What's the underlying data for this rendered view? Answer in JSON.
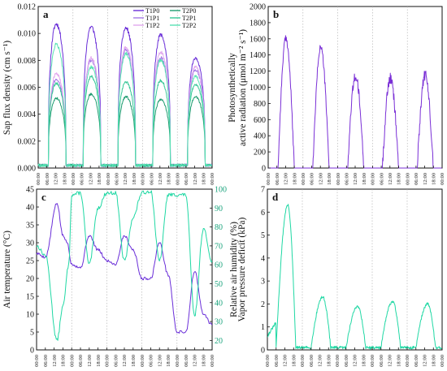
{
  "colors": {
    "T1P0": "#6a2ed8",
    "T1P1": "#a67ae6",
    "T1P2": "#e2a8ee",
    "T2P0": "#1f9c70",
    "T2P1": "#35c796",
    "T2P2": "#58e2b4",
    "par": "#7a2fd6",
    "temp": "#6a2ed8",
    "rh": "#20d8a4",
    "vpd": "#20d8a4"
  },
  "chart_data": [
    {
      "panel": "a",
      "type": "line",
      "ylabel": "Sap flux density (cm s⁻¹)",
      "ylim": [
        0,
        0.012
      ],
      "yticks": [
        "0.000",
        "0.002",
        "0.004",
        "0.006",
        "0.008",
        "0.010",
        "0.012"
      ],
      "xticks": [
        "00:00",
        "06:00",
        "12:00",
        "18:00",
        "00:00",
        "06:00",
        "12:00",
        "18:00",
        "00:00",
        "06:00",
        "12:00",
        "18:00",
        "00:00",
        "06:00",
        "12:00",
        "18:00",
        "00:00",
        "06:00",
        "12:00",
        "18:00",
        "00:00"
      ],
      "legend": [
        "T1P0",
        "T2P0",
        "T1P1",
        "T2P1",
        "T1P2",
        "T2P2"
      ],
      "series": [
        {
          "name": "T1P0",
          "daily_peaks": [
            0.0107,
            0.0105,
            0.0104,
            0.0099,
            0.0082
          ]
        },
        {
          "name": "T1P1",
          "daily_peaks": [
            0.0066,
            0.008,
            0.0088,
            0.0082,
            0.0073
          ]
        },
        {
          "name": "T1P2",
          "daily_peaks": [
            0.007,
            0.0082,
            0.009,
            0.0086,
            0.0075
          ]
        },
        {
          "name": "T2P0",
          "daily_peaks": [
            0.0052,
            0.0055,
            0.0053,
            0.0051,
            0.0053
          ]
        },
        {
          "name": "T2P1",
          "daily_peaks": [
            0.0063,
            0.0068,
            0.0064,
            0.0065,
            0.0062
          ]
        },
        {
          "name": "T2P2",
          "daily_peaks": [
            0.0092,
            0.0075,
            0.0085,
            0.008,
            0.0068
          ]
        }
      ]
    },
    {
      "panel": "b",
      "type": "line",
      "ylabel": "Photosynthetically active radiation (μmol m⁻² s⁻¹)",
      "ylabel_lines": [
        "Photosynthetically",
        "active radiation (μmol m⁻² s⁻¹)"
      ],
      "ylim": [
        0,
        2000
      ],
      "yticks": [
        "0",
        "200",
        "400",
        "600",
        "800",
        "1000",
        "1200",
        "1400",
        "1600",
        "1800",
        "2000"
      ],
      "xticks": [
        "00:00",
        "06:00",
        "12:00",
        "18:00",
        "00:00",
        "06:00",
        "12:00",
        "18:00",
        "00:00",
        "06:00",
        "12:00",
        "18:00",
        "00:00",
        "06:00",
        "12:00",
        "18:00",
        "00:00",
        "06:00",
        "12:00",
        "18:00",
        "00:00"
      ],
      "series": [
        {
          "name": "PAR",
          "daily_peaks": [
            1600,
            1500,
            1130,
            1110,
            1150
          ]
        }
      ]
    },
    {
      "panel": "c",
      "type": "line",
      "ylabel": "Air temperature (°C)",
      "ylabel_right": "Relative air humidity (%)",
      "ylim": [
        0,
        45
      ],
      "ylim_right": [
        15,
        100
      ],
      "yticks": [
        "0",
        "5",
        "10",
        "15",
        "20",
        "25",
        "30",
        "35",
        "40",
        "45"
      ],
      "yticks_right": [
        "20",
        "30",
        "40",
        "50",
        "60",
        "70",
        "80",
        "90",
        "100"
      ],
      "xticks": [
        "00:00",
        "06:00",
        "12:00",
        "18:00",
        "00:00",
        "06:00",
        "12:00",
        "18:00",
        "00:00",
        "06:00",
        "12:00",
        "18:00",
        "00:00",
        "06:00",
        "12:00",
        "18:00",
        "00:00",
        "06:00",
        "12:00",
        "18:00",
        "00:00"
      ],
      "series": [
        {
          "name": "Air temperature",
          "points": [
            [
              0,
              27
            ],
            [
              6,
              26
            ],
            [
              14,
              41
            ],
            [
              18,
              32
            ],
            [
              21,
              30
            ],
            [
              24,
              24
            ],
            [
              30,
              23
            ],
            [
              36,
              32
            ],
            [
              42,
              28
            ],
            [
              48,
              25
            ],
            [
              54,
              24
            ],
            [
              60,
              32
            ],
            [
              66,
              28
            ],
            [
              72,
              20
            ],
            [
              78,
              20
            ],
            [
              84,
              30
            ],
            [
              90,
              21
            ],
            [
              96,
              5
            ],
            [
              102,
              5
            ],
            [
              108,
              22
            ],
            [
              114,
              10
            ],
            [
              120,
              7
            ]
          ]
        },
        {
          "name": "Relative air humidity",
          "points": [
            [
              0,
              70
            ],
            [
              6,
              65
            ],
            [
              14,
              20
            ],
            [
              18,
              38
            ],
            [
              22,
              60
            ],
            [
              24,
              97
            ],
            [
              30,
              98
            ],
            [
              36,
              60
            ],
            [
              42,
              90
            ],
            [
              48,
              98
            ],
            [
              54,
              98
            ],
            [
              60,
              62
            ],
            [
              66,
              85
            ],
            [
              72,
              98
            ],
            [
              78,
              99
            ],
            [
              84,
              62
            ],
            [
              90,
              97
            ],
            [
              96,
              97
            ],
            [
              102,
              97
            ],
            [
              108,
              33
            ],
            [
              114,
              79
            ],
            [
              120,
              62
            ]
          ]
        }
      ]
    },
    {
      "panel": "d",
      "type": "line",
      "ylabel": "Vapor pressure deficit (kPa)",
      "ylim": [
        0,
        7
      ],
      "yticks": [
        "0",
        "1",
        "2",
        "3",
        "4",
        "5",
        "6",
        "7"
      ],
      "xticks": [
        "00:00",
        "06:00",
        "12:00",
        "18:00",
        "00:00",
        "06:00",
        "12:00",
        "18:00",
        "00:00",
        "06:00",
        "12:00",
        "18:00",
        "00:00",
        "06:00",
        "12:00",
        "18:00",
        "00:00",
        "06:00",
        "12:00",
        "18:00",
        "00:00"
      ],
      "series": [
        {
          "name": "VPD",
          "daily_peaks": [
            6.3,
            2.3,
            1.9,
            2.1,
            2.0
          ]
        }
      ]
    }
  ]
}
